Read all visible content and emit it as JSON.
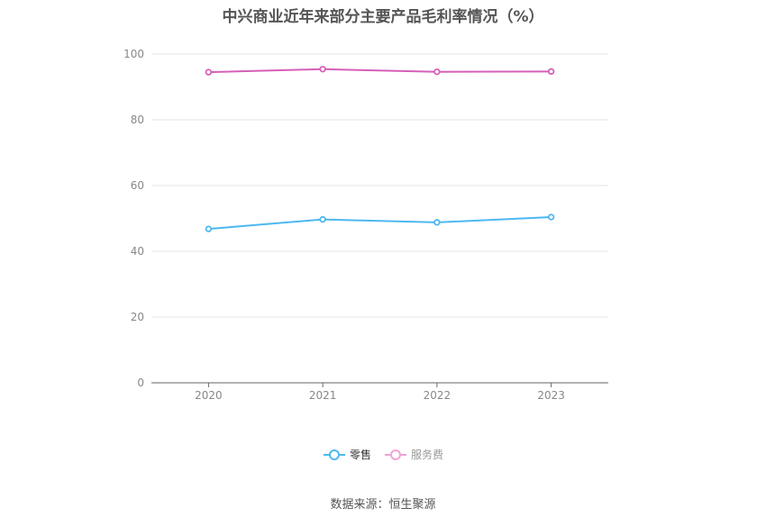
{
  "chart_data": {
    "type": "line",
    "title": "中兴商业近年来部分主要产品毛利率情况（%）",
    "xlabel": "",
    "ylabel": "",
    "categories": [
      "2020",
      "2021",
      "2022",
      "2023"
    ],
    "ylim": [
      0,
      100
    ],
    "yticks": [
      0,
      20,
      40,
      60,
      80,
      100
    ],
    "grid": true,
    "legend_position": "bottom",
    "series": [
      {
        "name": "零售",
        "color": "#4db8f0",
        "values": [
          46.8,
          49.7,
          48.8,
          50.4
        ],
        "legend_state": "active"
      },
      {
        "name": "服务费",
        "color": "#d65fb8",
        "values": [
          94.5,
          95.4,
          94.6,
          94.7
        ],
        "legend_state": "inactive",
        "legend_color": "#f0a3d6"
      }
    ]
  },
  "footer": {
    "source": "数据来源：恒生聚源"
  }
}
